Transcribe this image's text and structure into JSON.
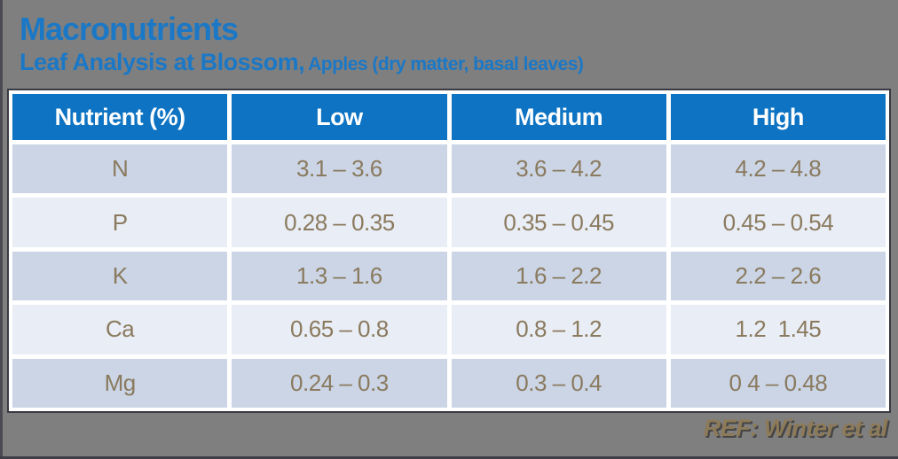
{
  "slide": {
    "title": "Macronutrients",
    "subtitle": "Leaf Analysis at Blossom,",
    "subtitle_detail": "Apples (dry matter, basal leaves)",
    "reference": "REF: Winter et al"
  },
  "table": {
    "headers": [
      "Nutrient (%)",
      "Low",
      "Medium",
      "High"
    ],
    "rows": [
      {
        "nutrient": "N",
        "low": "3.1 – 3.6",
        "medium": "3.6 – 4.2",
        "high": "4.2 – 4.8"
      },
      {
        "nutrient": "P",
        "low": "0.28 – 0.35",
        "medium": "0.35 – 0.45",
        "high": "0.45 – 0.54"
      },
      {
        "nutrient": "K",
        "low": "1.3 – 1.6",
        "medium": "1.6 – 2.2",
        "high": "2.2 – 2.6"
      },
      {
        "nutrient": "Ca",
        "low": "0.65 – 0.8",
        "medium": "0.8 – 1.2",
        "high": "1.2  1.45"
      },
      {
        "nutrient": "Mg",
        "low": "0.24 – 0.3",
        "medium": "0.3 – 0.4",
        "high": "0 4 – 0.48"
      }
    ]
  },
  "colors": {
    "background": "#7f7f7f",
    "title_blue": "#1b78c6",
    "header_bg": "#0d73c2",
    "header_text": "#ffffff",
    "row_dark": "#cbd5e6",
    "row_light": "#e9edf5",
    "cell_text": "#8a7a5e",
    "reference_text": "#8d7a58"
  }
}
